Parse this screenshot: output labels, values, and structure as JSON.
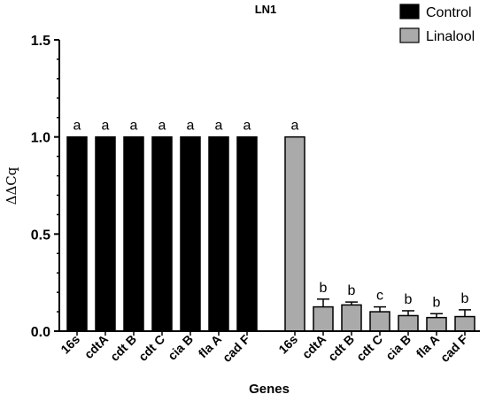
{
  "chart_data": {
    "type": "bar",
    "title": "LN1",
    "xlabel": "Genes",
    "ylabel": "ΔΔCq",
    "ylim": [
      0,
      1.5
    ],
    "yticks": [
      "0.0",
      "0.5",
      "1.0",
      "1.5"
    ],
    "legend_position": "top-right",
    "series": [
      {
        "name": "Control",
        "color": "#000000",
        "categories": [
          "16s",
          "cdtA",
          "cdt B",
          "cdt C",
          "cia B",
          "fla A",
          "cad F"
        ],
        "values": [
          1.0,
          1.0,
          1.0,
          1.0,
          1.0,
          1.0,
          1.0
        ],
        "errors": [
          0,
          0,
          0,
          0,
          0,
          0,
          0
        ],
        "labels": [
          "a",
          "a",
          "a",
          "a",
          "a",
          "a",
          "a"
        ]
      },
      {
        "name": "Linalool",
        "color": "#aaaaaa",
        "categories": [
          "16s",
          "cdtA",
          "cdt B",
          "cdt C",
          "cia B",
          "fla A",
          "cad F"
        ],
        "values": [
          1.0,
          0.125,
          0.135,
          0.1,
          0.08,
          0.07,
          0.075
        ],
        "errors": [
          0,
          0.04,
          0.015,
          0.025,
          0.025,
          0.02,
          0.035
        ],
        "labels": [
          "a",
          "b",
          "b",
          "c",
          "b",
          "b",
          "b"
        ]
      }
    ]
  }
}
